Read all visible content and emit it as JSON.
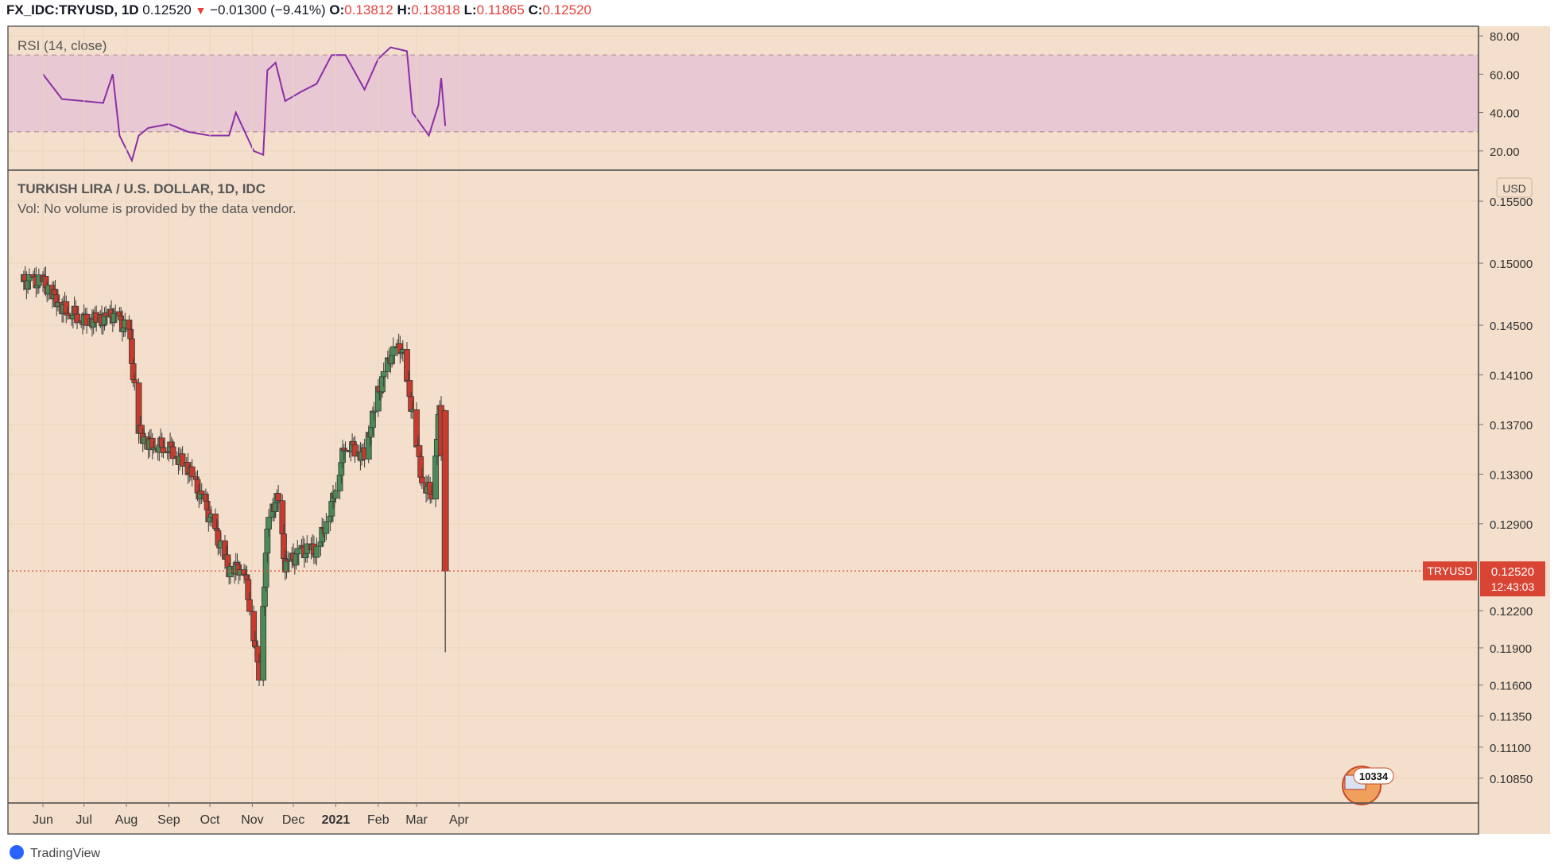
{
  "header": {
    "symbol": "FX_IDC:TRYUSD, 1D",
    "last": "0.12520",
    "change_arrow": "▼",
    "change": "−0.01300 (−9.41%)",
    "open_label": "O:",
    "open": "0.13812",
    "high_label": "H:",
    "high": "0.13818",
    "low_label": "L:",
    "low": "0.11865",
    "close_label": "C:",
    "close": "0.12520"
  },
  "rsi_pane": {
    "title": "RSI (14, close)",
    "ticks": [
      "80.00",
      "60.00",
      "40.00",
      "20.00"
    ]
  },
  "price_pane": {
    "title": "TURKISH LIRA / U.S. DOLLAR, 1D, IDC",
    "volume_note": "Vol: No volume is provided by the data vendor.",
    "currency_badge": "USD",
    "ticks": [
      "0.15500",
      "0.15000",
      "0.14500",
      "0.14100",
      "0.13700",
      "0.13300",
      "0.12900",
      "0.12200",
      "0.11900",
      "0.11600",
      "0.11350",
      "0.11100",
      "0.10850"
    ],
    "last_price_label": "0.12520",
    "countdown": "12:43:03",
    "symbol_tag": "TRYUSD",
    "flag_badge": "10334"
  },
  "time_axis": {
    "labels": [
      "Jun",
      "Jul",
      "Aug",
      "Sep",
      "Oct",
      "Nov",
      "Dec",
      "2021",
      "Feb",
      "Mar",
      "Apr"
    ]
  },
  "footer": {
    "brand": "TradingView"
  },
  "colors": {
    "background": "#f3dfcb",
    "up_candle": "#4b8a56",
    "down_candle": "#c63b2d",
    "rsi_line": "#8a2fa6",
    "rsi_band": "#e8c8d2",
    "last_price": "#d94535"
  },
  "chart_data": [
    {
      "type": "line",
      "title": "RSI (14, close)",
      "ylim": [
        10,
        85
      ],
      "band": [
        30,
        70
      ],
      "x": [
        "2020-06-01",
        "2020-06-15",
        "2020-07-01",
        "2020-07-15",
        "2020-07-22",
        "2020-07-27",
        "2020-08-05",
        "2020-08-10",
        "2020-08-17",
        "2020-09-01",
        "2020-09-15",
        "2020-10-01",
        "2020-10-15",
        "2020-10-20",
        "2020-11-02",
        "2020-11-09",
        "2020-11-12",
        "2020-11-18",
        "2020-11-25",
        "2020-12-07",
        "2020-12-18",
        "2020-12-29",
        "2021-01-08",
        "2021-01-22",
        "2021-02-01",
        "2021-02-10",
        "2021-02-22",
        "2021-02-26",
        "2021-03-04",
        "2021-03-10",
        "2021-03-17",
        "2021-03-19",
        "2021-03-22"
      ],
      "series": [
        {
          "values": [
            60,
            47,
            46,
            45,
            60,
            28,
            15,
            28,
            32,
            34,
            30,
            28,
            28,
            40,
            20,
            18,
            62,
            66,
            46,
            51,
            55,
            70,
            70,
            52,
            68,
            74,
            72,
            40,
            34,
            28,
            44,
            58,
            33
          ]
        }
      ]
    },
    {
      "type": "candlestick",
      "title": "TURKISH LIRA / U.S. DOLLAR, 1D, IDC",
      "ylim": [
        0.1065,
        0.1575
      ],
      "x": [
        "2020-06-01",
        "2020-06-15",
        "2020-07-01",
        "2020-07-15",
        "2020-07-22",
        "2020-08-03",
        "2020-08-10",
        "2020-08-17",
        "2020-09-01",
        "2020-09-15",
        "2020-10-01",
        "2020-10-15",
        "2020-10-26",
        "2020-11-06",
        "2020-11-13",
        "2020-11-20",
        "2020-11-25",
        "2020-12-07",
        "2020-12-18",
        "2020-12-29",
        "2021-01-08",
        "2021-01-22",
        "2021-02-01",
        "2021-02-10",
        "2021-02-18",
        "2021-02-26",
        "2021-03-05",
        "2021-03-12",
        "2021-03-18",
        "2021-03-22"
      ],
      "close": [
        0.1485,
        0.1465,
        0.1455,
        0.1454,
        0.1458,
        0.1445,
        0.1365,
        0.1355,
        0.1352,
        0.1335,
        0.1295,
        0.1253,
        0.1255,
        0.117,
        0.13,
        0.131,
        0.1255,
        0.1268,
        0.1268,
        0.1305,
        0.1355,
        0.1345,
        0.1395,
        0.1425,
        0.1432,
        0.138,
        0.1325,
        0.1315,
        0.1384,
        0.1252
      ],
      "last_close": 0.1252,
      "last_bar": {
        "open": 0.13812,
        "high": 0.13818,
        "low": 0.11865,
        "close": 0.1252
      }
    }
  ]
}
